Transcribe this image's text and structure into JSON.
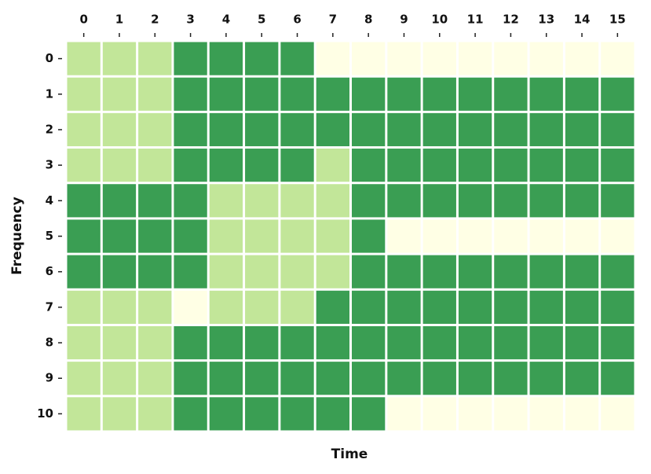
{
  "chart_data": {
    "type": "heatmap",
    "x_label": "Time",
    "y_label": "Frequency",
    "x_categories": [
      0,
      1,
      2,
      3,
      4,
      5,
      6,
      7,
      8,
      9,
      10,
      11,
      12,
      13,
      14,
      15
    ],
    "y_categories": [
      0,
      1,
      2,
      3,
      4,
      5,
      6,
      7,
      8,
      9,
      10
    ],
    "colormap": [
      "#ffffe5",
      "#c2e699",
      "#3a9e53"
    ],
    "values": [
      [
        1,
        1,
        1,
        2,
        2,
        2,
        2,
        0,
        0,
        0,
        0,
        0,
        0,
        0,
        0,
        0
      ],
      [
        1,
        1,
        1,
        2,
        2,
        2,
        2,
        2,
        2,
        2,
        2,
        2,
        2,
        2,
        2,
        2
      ],
      [
        1,
        1,
        1,
        2,
        2,
        2,
        2,
        2,
        2,
        2,
        2,
        2,
        2,
        2,
        2,
        2
      ],
      [
        1,
        1,
        1,
        2,
        2,
        2,
        2,
        1,
        2,
        2,
        2,
        2,
        2,
        2,
        2,
        2
      ],
      [
        2,
        2,
        2,
        2,
        1,
        1,
        1,
        1,
        2,
        2,
        2,
        2,
        2,
        2,
        2,
        2
      ],
      [
        2,
        2,
        2,
        2,
        1,
        1,
        1,
        1,
        2,
        0,
        0,
        0,
        0,
        0,
        0,
        0
      ],
      [
        2,
        2,
        2,
        2,
        1,
        1,
        1,
        1,
        2,
        2,
        2,
        2,
        2,
        2,
        2,
        2
      ],
      [
        1,
        1,
        1,
        0,
        1,
        1,
        1,
        2,
        2,
        2,
        2,
        2,
        2,
        2,
        2,
        2
      ],
      [
        1,
        1,
        1,
        2,
        2,
        2,
        2,
        2,
        2,
        2,
        2,
        2,
        2,
        2,
        2,
        2
      ],
      [
        1,
        1,
        1,
        2,
        2,
        2,
        2,
        2,
        2,
        2,
        2,
        2,
        2,
        2,
        2,
        2
      ],
      [
        1,
        1,
        1,
        2,
        2,
        2,
        2,
        2,
        2,
        0,
        0,
        0,
        0,
        0,
        0,
        0
      ]
    ]
  }
}
